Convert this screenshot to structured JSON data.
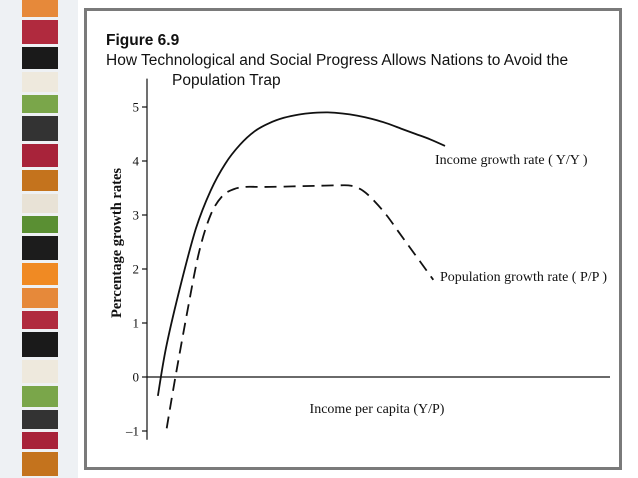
{
  "figure": {
    "label": "Figure 6.9",
    "title_line1": "How Technological and Social Progress Allows Nations to Avoid the",
    "title_line2": "Population Trap"
  },
  "chart_data": {
    "type": "line",
    "title": "How Technological and Social Progress Allows Nations to Avoid the Population Trap",
    "xlabel": "Income per capita (Y/P)",
    "ylabel": "Percentage growth rates",
    "ylim": [
      -1.2,
      5.6
    ],
    "yticks": [
      -1,
      0,
      1,
      2,
      3,
      4,
      5
    ],
    "ytick_labels": [
      "–1",
      "0",
      "1",
      "2",
      "3",
      "4",
      "5"
    ],
    "grid": false,
    "legend": "labels placed next to each curve",
    "series": [
      {
        "name": "Income growth rate ( Y/Y )",
        "style": "solid",
        "x": [
          0.02,
          0.05,
          0.1,
          0.15,
          0.2,
          0.25,
          0.3,
          0.35,
          0.4,
          0.45,
          0.5,
          0.55,
          0.6,
          0.65,
          0.7,
          0.75,
          0.8,
          0.85,
          0.9,
          0.95,
          1.0
        ],
        "values": [
          -0.35,
          0.6,
          1.75,
          2.75,
          3.45,
          3.95,
          4.3,
          4.55,
          4.7,
          4.8,
          4.86,
          4.89,
          4.9,
          4.88,
          4.84,
          4.78,
          4.7,
          4.6,
          4.5,
          4.4,
          4.28
        ]
      },
      {
        "name": "Population growth rate ( P/P )",
        "style": "dashed",
        "x": [
          0.05,
          0.08,
          0.12,
          0.16,
          0.2,
          0.24,
          0.28,
          0.32,
          0.36,
          0.4,
          0.48,
          0.56,
          0.64,
          0.68,
          0.72,
          0.76,
          0.8,
          0.84,
          0.88,
          0.92,
          0.96
        ],
        "values": [
          -0.95,
          0.0,
          1.2,
          2.3,
          3.0,
          3.35,
          3.48,
          3.52,
          3.52,
          3.52,
          3.53,
          3.54,
          3.55,
          3.54,
          3.45,
          3.25,
          3.0,
          2.7,
          2.4,
          2.1,
          1.8
        ]
      }
    ]
  },
  "strip_colors": [
    "#e6893a",
    "#b02a3e",
    "#1a1a1a",
    "#eee9dd",
    "#7aa64a",
    "#333333",
    "#a8233a",
    "#c4731d",
    "#e8e2d6",
    "#5a8f33",
    "#1c1c1c",
    "#f08a23"
  ]
}
